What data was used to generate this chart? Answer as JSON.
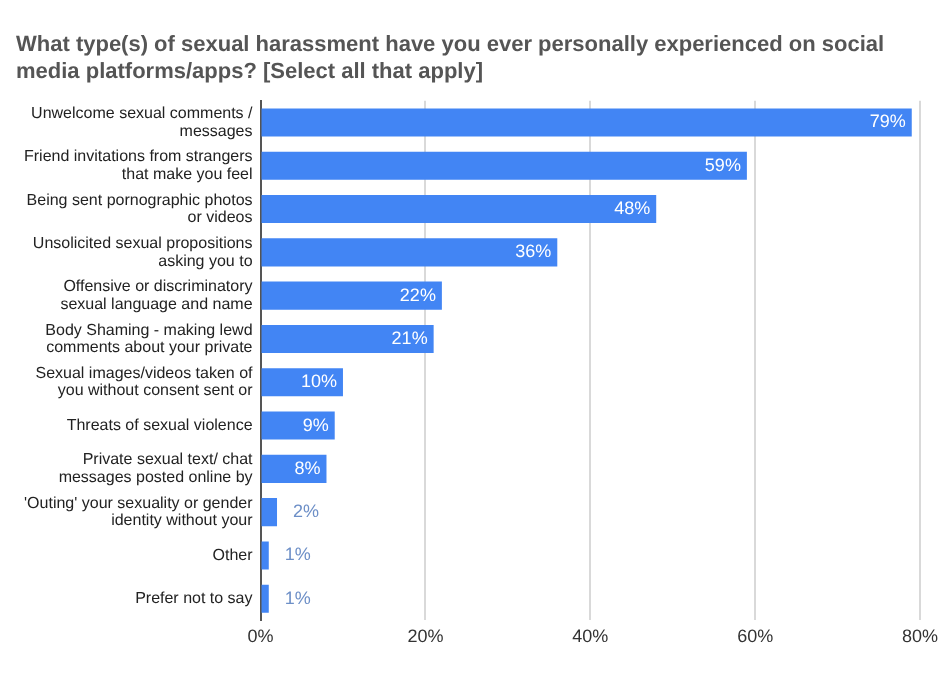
{
  "chart_data": {
    "type": "bar",
    "orientation": "horizontal",
    "title": "What type(s) of sexual harassment have you ever personally experienced on social media platforms/apps? [Select all that apply]",
    "categories": [
      "Unwelcome sexual comments / messages",
      "Friend invitations from strangers that make you feel",
      "Being sent pornographic photos or videos",
      "Unsolicited sexual propositions asking you to",
      "Offensive or discriminatory sexual language and name",
      "Body Shaming - making lewd comments about your private",
      "Sexual images/videos taken of you without consent sent or",
      "Threats of sexual violence",
      "Private sexual text/ chat messages posted online by",
      "'Outing' your sexuality or gender identity without your",
      "Other",
      "Prefer not to say"
    ],
    "values": [
      79,
      59,
      48,
      36,
      22,
      21,
      10,
      9,
      8,
      2,
      1,
      1
    ],
    "value_labels": [
      "79%",
      "59%",
      "48%",
      "36%",
      "22%",
      "21%",
      "10%",
      "9%",
      "8%",
      "2%",
      "1%",
      "1%"
    ],
    "color": "#4285f4",
    "xlim": [
      0,
      80
    ],
    "xticks": [
      {
        "value": 0,
        "label": "0%"
      },
      {
        "value": 20,
        "label": "20%"
      },
      {
        "value": 40,
        "label": "40%"
      },
      {
        "value": 60,
        "label": "60%"
      },
      {
        "value": 80,
        "label": "80%"
      }
    ],
    "grid": "x",
    "legend": false
  }
}
